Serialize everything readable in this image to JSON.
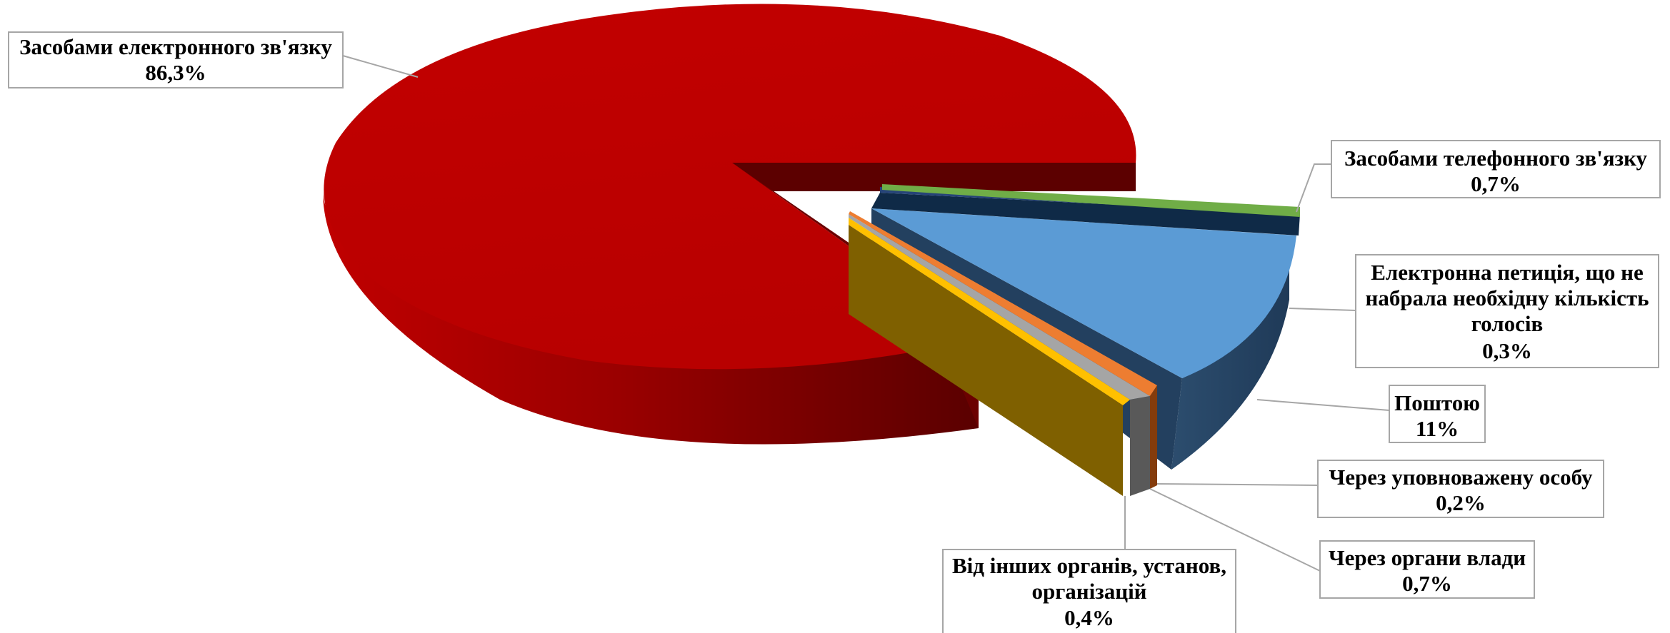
{
  "chart_data": {
    "type": "pie",
    "title": "",
    "legend": "none",
    "slices": [
      {
        "label": "Засобами електронного зв'язку",
        "value_label": "86,3%",
        "value": 86.3,
        "color": "#c00000"
      },
      {
        "label": "Засобами телефонного зв'язку",
        "value_label": "0,7%",
        "value": 0.7,
        "color": "#70ad47"
      },
      {
        "label": "Електронна петиція, що не набрала необхідну кількість голосів",
        "value_label": "0,3%",
        "value": 0.3,
        "color": "#264478"
      },
      {
        "label": "Поштою",
        "value_label": "11%",
        "value": 11,
        "color": "#5b9bd5"
      },
      {
        "label": "Через уповноважену особу",
        "value_label": "0,2%",
        "value": 0.2,
        "color": "#ed7d31"
      },
      {
        "label": "Через органи влади",
        "value_label": "0,7%",
        "value": 0.7,
        "color": "#a5a5a5"
      },
      {
        "label": "Від інших органів, установ, організацій",
        "value_label": "0,4%",
        "value": 0.4,
        "color": "#ffc000"
      },
      {
        "label": "",
        "value_label": "",
        "value": 0.4,
        "color": "#7f6000"
      }
    ]
  }
}
